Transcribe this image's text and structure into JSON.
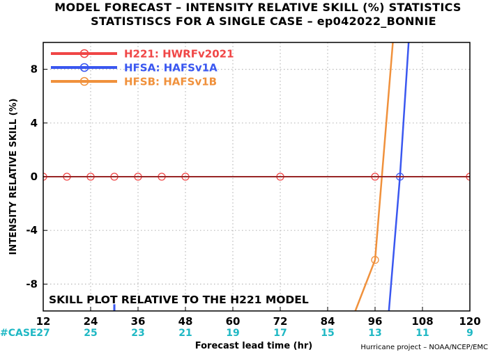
{
  "chart_data": {
    "type": "line",
    "title": "MODEL FORECAST – INTENSITY RELATIVE SKILL (%) STATISTICS",
    "subtitle": "STATISTISCS FOR A SINGLE CASE – ep042022_BONNIE",
    "xlabel": "Forecast lead time (hr)",
    "ylabel": "INTENSITY RELATIVE SKILL (%)",
    "xlim": [
      12,
      120
    ],
    "ylim": [
      -10,
      10
    ],
    "x_ticks": [
      12,
      24,
      36,
      48,
      60,
      72,
      84,
      96,
      108,
      120
    ],
    "y_ticks": [
      -8,
      -4,
      0,
      4,
      8
    ],
    "y_tick_labels": [
      "-8",
      "-4",
      "0",
      "4",
      "8"
    ],
    "grid": true,
    "legend_position": "top-left",
    "case_label": "#CASE",
    "case_counts": [
      27,
      25,
      23,
      21,
      19,
      17,
      15,
      13,
      11,
      9
    ],
    "annotation": "SKILL PLOT RELATIVE TO THE H221 MODEL",
    "credit": "Hurricane project – NOAA/NCEP/EMC",
    "series": [
      {
        "name": "H221: HWRFv2021",
        "color": "#f04646",
        "x": [
          12,
          18,
          24,
          30,
          36,
          42,
          48,
          72,
          96,
          120
        ],
        "y": [
          0,
          0,
          0,
          0,
          0,
          0,
          0,
          0,
          0,
          0
        ]
      },
      {
        "name": "HFSA: HAFSv1A",
        "color": "#3a57f0",
        "x": [
          99.5,
          102.3,
          104.5
        ],
        "y": [
          -10,
          0,
          10
        ]
      },
      {
        "name": "HFSB: HAFSv1B",
        "color": "#f0913c",
        "x": [
          91,
          96,
          100.5
        ],
        "y": [
          -10,
          -6.2,
          10
        ]
      }
    ],
    "extra_marks": [
      {
        "series": "HFSA: HAFSv1A",
        "x": 30,
        "y": [
          -10,
          -9.5
        ]
      }
    ]
  }
}
